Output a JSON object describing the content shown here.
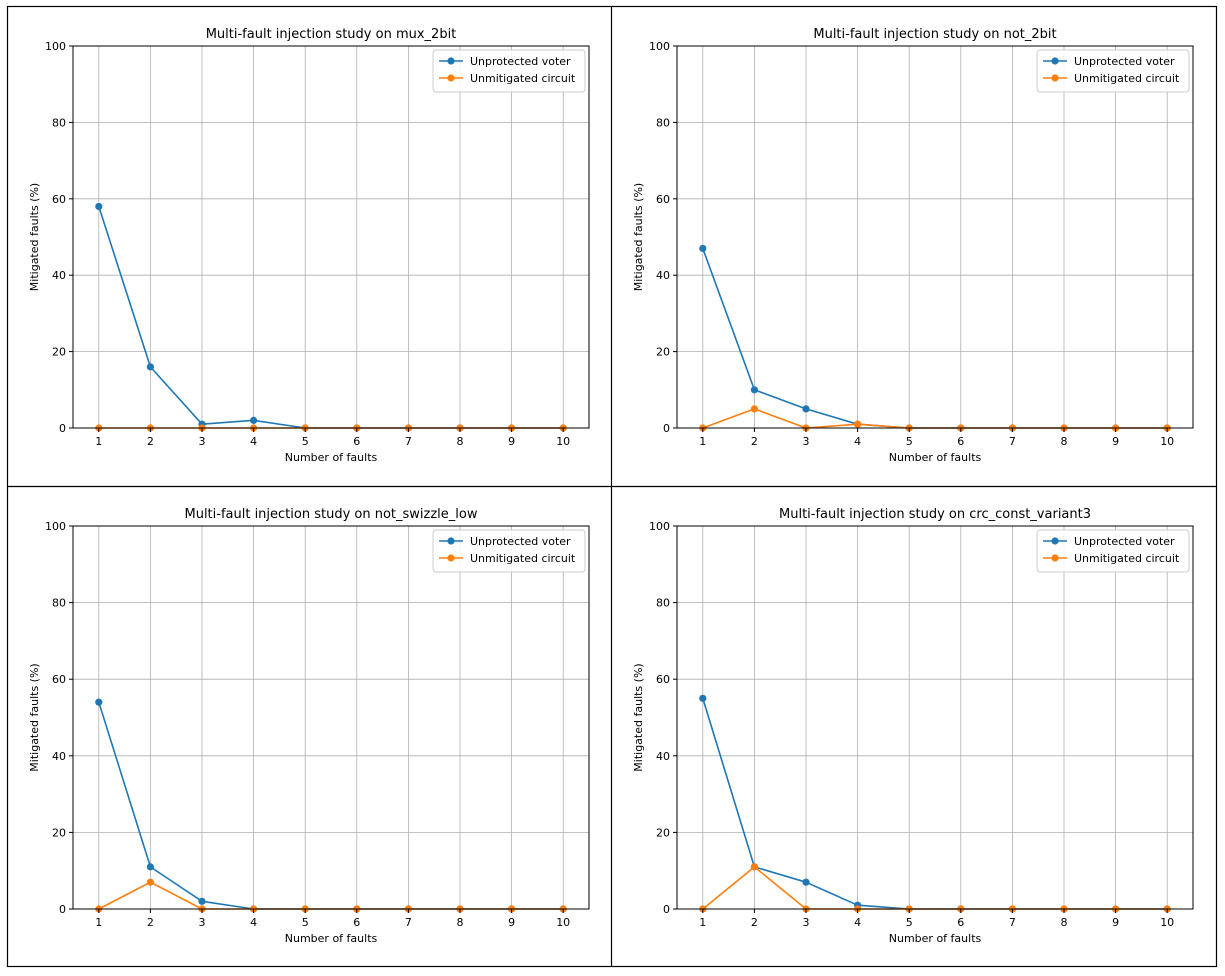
{
  "chart_data": [
    {
      "type": "line",
      "title": "Multi-fault injection study on mux_2bit",
      "xlabel": "Number of faults",
      "ylabel": "Mitigated faults (%)",
      "x": [
        1,
        2,
        3,
        4,
        5,
        6,
        7,
        8,
        9,
        10
      ],
      "xticks": [
        "1",
        "2",
        "3",
        "4",
        "5",
        "6",
        "7",
        "8",
        "9",
        "10"
      ],
      "yticks": [
        "0",
        "20",
        "40",
        "60",
        "80",
        "100"
      ],
      "ylim": [
        0,
        100
      ],
      "grid": true,
      "legend_position": "top-right",
      "series": [
        {
          "name": "Unprotected voter",
          "color": "#1f77b4",
          "values": [
            58,
            16,
            1,
            2,
            0,
            0,
            0,
            0,
            0,
            0
          ]
        },
        {
          "name": "Unmitigated circuit",
          "color": "#ff7f0e",
          "values": [
            0,
            0,
            0,
            0,
            0,
            0,
            0,
            0,
            0,
            0
          ]
        }
      ]
    },
    {
      "type": "line",
      "title": "Multi-fault injection study on not_2bit",
      "xlabel": "Number of faults",
      "ylabel": "Mitigated faults (%)",
      "x": [
        1,
        2,
        3,
        4,
        5,
        6,
        7,
        8,
        9,
        10
      ],
      "xticks": [
        "1",
        "2",
        "3",
        "4",
        "5",
        "6",
        "7",
        "8",
        "9",
        "10"
      ],
      "yticks": [
        "0",
        "20",
        "40",
        "60",
        "80",
        "100"
      ],
      "ylim": [
        0,
        100
      ],
      "grid": true,
      "legend_position": "top-right",
      "series": [
        {
          "name": "Unprotected voter",
          "color": "#1f77b4",
          "values": [
            47,
            10,
            5,
            1,
            0,
            0,
            0,
            0,
            0,
            0
          ]
        },
        {
          "name": "Unmitigated circuit",
          "color": "#ff7f0e",
          "values": [
            0,
            5,
            0,
            1,
            0,
            0,
            0,
            0,
            0,
            0
          ]
        }
      ]
    },
    {
      "type": "line",
      "title": "Multi-fault injection study on not_swizzle_low",
      "xlabel": "Number of faults",
      "ylabel": "Mitigated faults (%)",
      "x": [
        1,
        2,
        3,
        4,
        5,
        6,
        7,
        8,
        9,
        10
      ],
      "xticks": [
        "1",
        "2",
        "3",
        "4",
        "5",
        "6",
        "7",
        "8",
        "9",
        "10"
      ],
      "yticks": [
        "0",
        "20",
        "40",
        "60",
        "80",
        "100"
      ],
      "ylim": [
        0,
        100
      ],
      "grid": true,
      "legend_position": "top-right",
      "series": [
        {
          "name": "Unprotected voter",
          "color": "#1f77b4",
          "values": [
            54,
            11,
            2,
            0,
            0,
            0,
            0,
            0,
            0,
            0
          ]
        },
        {
          "name": "Unmitigated circuit",
          "color": "#ff7f0e",
          "values": [
            0,
            7,
            0,
            0,
            0,
            0,
            0,
            0,
            0,
            0
          ]
        }
      ]
    },
    {
      "type": "line",
      "title": "Multi-fault injection study on crc_const_variant3",
      "xlabel": "Number of faults",
      "ylabel": "Mitigated faults (%)",
      "x": [
        1,
        2,
        3,
        4,
        5,
        6,
        7,
        8,
        9,
        10
      ],
      "xticks": [
        "1",
        "2",
        "3",
        "4",
        "5",
        "6",
        "7",
        "8",
        "9",
        "10"
      ],
      "yticks": [
        "0",
        "20",
        "40",
        "60",
        "80",
        "100"
      ],
      "ylim": [
        0,
        100
      ],
      "grid": true,
      "legend_position": "top-right",
      "series": [
        {
          "name": "Unprotected voter",
          "color": "#1f77b4",
          "values": [
            55,
            11,
            7,
            1,
            0,
            0,
            0,
            0,
            0,
            0
          ]
        },
        {
          "name": "Unmitigated circuit",
          "color": "#ff7f0e",
          "values": [
            0,
            11,
            0,
            0,
            0,
            0,
            0,
            0,
            0,
            0
          ]
        }
      ]
    }
  ]
}
